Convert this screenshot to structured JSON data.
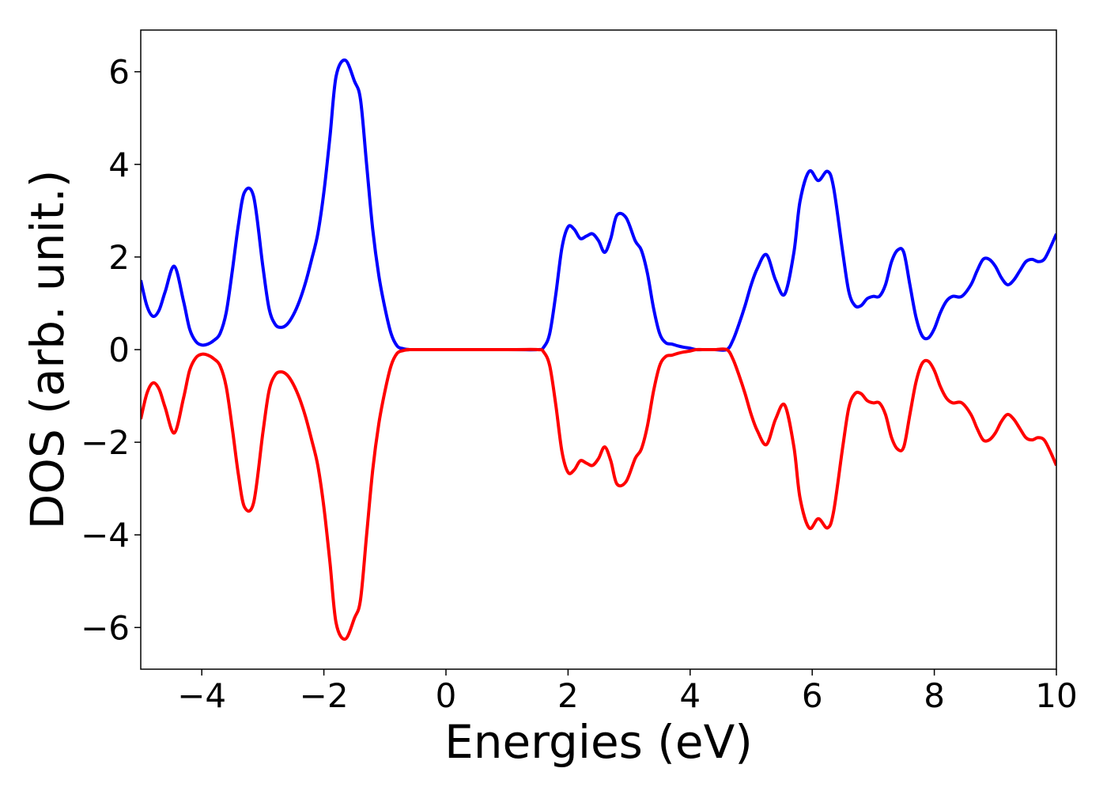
{
  "chart_data": {
    "type": "line",
    "title": "",
    "xlabel": "Energies (eV)",
    "ylabel": "DOS (arb. unit.)",
    "xlim": [
      -5,
      10
    ],
    "ylim": [
      -6.9,
      6.9
    ],
    "xticks": [
      -4,
      -2,
      0,
      2,
      4,
      6,
      8,
      10
    ],
    "xtick_labels": [
      "−4",
      "−2",
      "0",
      "2",
      "4",
      "6",
      "8",
      "10"
    ],
    "yticks": [
      6,
      4,
      2,
      0,
      -2,
      -4,
      -6
    ],
    "ytick_labels": [
      "6",
      "4",
      "2",
      "0",
      "−2",
      "−4",
      "−6"
    ],
    "grid": false,
    "series": [
      {
        "color": "#0000ff",
        "x": [
          -5.0,
          -4.9,
          -4.8,
          -4.7,
          -4.6,
          -4.45,
          -4.3,
          -4.2,
          -4.1,
          -4.0,
          -3.9,
          -3.8,
          -3.7,
          -3.6,
          -3.5,
          -3.4,
          -3.3,
          -3.15,
          -3.0,
          -2.9,
          -2.8,
          -2.7,
          -2.6,
          -2.5,
          -2.4,
          -2.3,
          -2.2,
          -2.1,
          -2.0,
          -1.9,
          -1.8,
          -1.65,
          -1.5,
          -1.4,
          -1.3,
          -1.2,
          -1.1,
          -1.0,
          -0.9,
          -0.8,
          -0.7,
          -0.6,
          -0.5,
          1.0,
          1.5,
          1.6,
          1.7,
          1.8,
          1.9,
          2.0,
          2.1,
          2.2,
          2.3,
          2.4,
          2.5,
          2.6,
          2.7,
          2.8,
          2.95,
          3.1,
          3.2,
          3.3,
          3.4,
          3.5,
          3.6,
          3.7,
          3.8,
          3.9,
          4.0,
          4.1,
          4.2,
          4.4,
          4.6,
          4.7,
          4.8,
          4.9,
          5.0,
          5.1,
          5.25,
          5.4,
          5.55,
          5.7,
          5.8,
          5.95,
          6.1,
          6.25,
          6.35,
          6.5,
          6.6,
          6.7,
          6.8,
          6.9,
          7.0,
          7.1,
          7.2,
          7.3,
          7.4,
          7.5,
          7.6,
          7.7,
          7.8,
          7.9,
          8.0,
          8.1,
          8.2,
          8.3,
          8.45,
          8.6,
          8.7,
          8.8,
          8.9,
          9.0,
          9.1,
          9.2,
          9.3,
          9.4,
          9.5,
          9.6,
          9.7,
          9.8,
          9.9,
          10.0
        ],
        "y": [
          1.5,
          0.95,
          0.72,
          0.85,
          1.25,
          1.8,
          1.05,
          0.45,
          0.18,
          0.1,
          0.12,
          0.2,
          0.35,
          0.8,
          1.7,
          2.7,
          3.4,
          3.3,
          1.8,
          0.9,
          0.55,
          0.48,
          0.55,
          0.75,
          1.05,
          1.45,
          1.95,
          2.5,
          3.4,
          4.6,
          5.9,
          6.25,
          5.8,
          5.4,
          4.0,
          2.6,
          1.6,
          0.9,
          0.35,
          0.08,
          0.02,
          0.0,
          0.0,
          0.0,
          0.0,
          0.05,
          0.35,
          1.2,
          2.2,
          2.65,
          2.6,
          2.4,
          2.45,
          2.5,
          2.35,
          2.1,
          2.4,
          2.9,
          2.85,
          2.35,
          2.15,
          1.65,
          0.9,
          0.35,
          0.15,
          0.12,
          0.08,
          0.05,
          0.03,
          0.0,
          0.0,
          0.0,
          0.0,
          0.2,
          0.55,
          0.95,
          1.4,
          1.75,
          2.05,
          1.5,
          1.2,
          2.1,
          3.2,
          3.85,
          3.65,
          3.85,
          3.5,
          2.1,
          1.25,
          0.95,
          0.95,
          1.1,
          1.15,
          1.15,
          1.4,
          1.9,
          2.15,
          2.1,
          1.4,
          0.7,
          0.3,
          0.25,
          0.45,
          0.8,
          1.05,
          1.15,
          1.15,
          1.4,
          1.7,
          1.95,
          1.95,
          1.8,
          1.55,
          1.4,
          1.5,
          1.7,
          1.9,
          1.95,
          1.9,
          1.95,
          2.2,
          2.5
        ]
      },
      {
        "color": "#ff0000",
        "x": [
          -5.0,
          -4.9,
          -4.8,
          -4.7,
          -4.6,
          -4.45,
          -4.3,
          -4.2,
          -4.1,
          -4.0,
          -3.9,
          -3.8,
          -3.7,
          -3.6,
          -3.5,
          -3.4,
          -3.3,
          -3.15,
          -3.0,
          -2.9,
          -2.8,
          -2.7,
          -2.6,
          -2.5,
          -2.4,
          -2.3,
          -2.2,
          -2.1,
          -2.0,
          -1.9,
          -1.8,
          -1.65,
          -1.5,
          -1.4,
          -1.3,
          -1.2,
          -1.1,
          -1.0,
          -0.9,
          -0.8,
          -0.7,
          -0.6,
          -0.5,
          1.0,
          1.5,
          1.6,
          1.7,
          1.8,
          1.9,
          2.0,
          2.1,
          2.2,
          2.3,
          2.4,
          2.5,
          2.6,
          2.7,
          2.8,
          2.95,
          3.1,
          3.2,
          3.3,
          3.4,
          3.5,
          3.6,
          3.7,
          3.8,
          3.9,
          4.0,
          4.1,
          4.2,
          4.4,
          4.6,
          4.7,
          4.8,
          4.9,
          5.0,
          5.1,
          5.25,
          5.4,
          5.55,
          5.7,
          5.8,
          5.95,
          6.1,
          6.25,
          6.35,
          6.5,
          6.6,
          6.7,
          6.8,
          6.9,
          7.0,
          7.1,
          7.2,
          7.3,
          7.4,
          7.5,
          7.6,
          7.7,
          7.8,
          7.9,
          8.0,
          8.1,
          8.2,
          8.3,
          8.45,
          8.6,
          8.7,
          8.8,
          8.9,
          9.0,
          9.1,
          9.2,
          9.3,
          9.4,
          9.5,
          9.6,
          9.7,
          9.8,
          9.9,
          10.0
        ],
        "y": [
          -1.5,
          -0.95,
          -0.72,
          -0.85,
          -1.25,
          -1.8,
          -1.05,
          -0.45,
          -0.18,
          -0.1,
          -0.12,
          -0.2,
          -0.35,
          -0.8,
          -1.7,
          -2.7,
          -3.4,
          -3.3,
          -1.8,
          -0.9,
          -0.55,
          -0.48,
          -0.55,
          -0.75,
          -1.05,
          -1.45,
          -1.95,
          -2.5,
          -3.4,
          -4.6,
          -5.9,
          -6.25,
          -5.8,
          -5.4,
          -4.0,
          -2.6,
          -1.6,
          -0.9,
          -0.35,
          -0.08,
          -0.02,
          0.0,
          0.0,
          0.0,
          0.0,
          -0.05,
          -0.35,
          -1.2,
          -2.2,
          -2.65,
          -2.6,
          -2.4,
          -2.45,
          -2.5,
          -2.35,
          -2.1,
          -2.4,
          -2.9,
          -2.85,
          -2.35,
          -2.15,
          -1.65,
          -0.9,
          -0.35,
          -0.15,
          -0.12,
          -0.08,
          -0.05,
          -0.03,
          0.0,
          0.0,
          0.0,
          0.0,
          -0.2,
          -0.55,
          -0.95,
          -1.4,
          -1.75,
          -2.05,
          -1.5,
          -1.2,
          -2.1,
          -3.2,
          -3.85,
          -3.65,
          -3.85,
          -3.5,
          -2.1,
          -1.25,
          -0.95,
          -0.95,
          -1.1,
          -1.15,
          -1.15,
          -1.4,
          -1.9,
          -2.15,
          -2.1,
          -1.4,
          -0.7,
          -0.3,
          -0.25,
          -0.45,
          -0.8,
          -1.05,
          -1.15,
          -1.15,
          -1.4,
          -1.7,
          -1.95,
          -1.95,
          -1.8,
          -1.55,
          -1.4,
          -1.5,
          -1.7,
          -1.9,
          -1.95,
          -1.9,
          -1.95,
          -2.2,
          -2.5
        ]
      }
    ]
  }
}
